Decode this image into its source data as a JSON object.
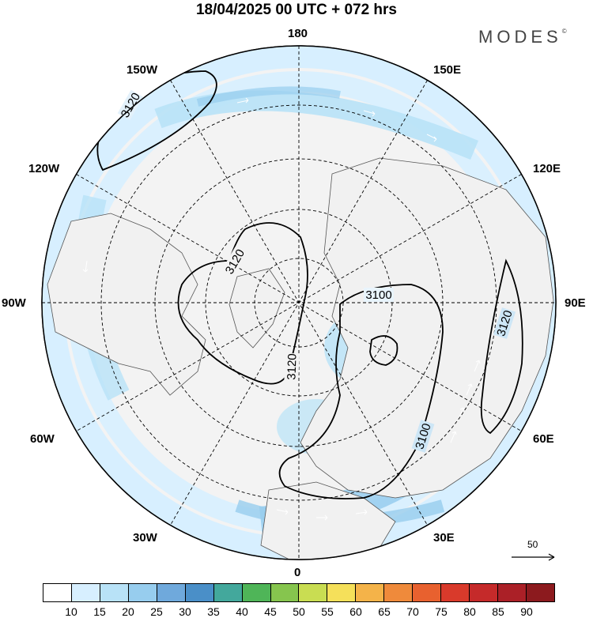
{
  "title": "18/04/2025  00 UTC  + 072 hrs",
  "brand": "MODES",
  "brand_mark": "©",
  "meridian_labels": {
    "top": "180",
    "bottom": "0",
    "left": "90W",
    "right": "90E",
    "upper_left": "150W",
    "upper_left_2": "120W",
    "upper_right": "150E",
    "upper_right_2": "120E",
    "lower_left": "60W",
    "lower_left_2": "30W",
    "lower_right": "60E",
    "lower_right_2": "30E"
  },
  "contour_labels": [
    "3120",
    "3120",
    "3120",
    "3100",
    "3100",
    "3120"
  ],
  "reference_vector": "50",
  "colorbar": {
    "colors": [
      "#ffffff",
      "#d7efff",
      "#b8e2f7",
      "#97cdee",
      "#6fa9dc",
      "#4a8fc8",
      "#43a89c",
      "#4fb558",
      "#86c54e",
      "#c9dd52",
      "#f5e05a",
      "#f4b349",
      "#ef8a3b",
      "#e8612f",
      "#d93a2b",
      "#c52a2a",
      "#ab2027",
      "#8c1a1e"
    ],
    "ticks": [
      "10",
      "15",
      "20",
      "25",
      "30",
      "35",
      "40",
      "45",
      "50",
      "55",
      "60",
      "65",
      "70",
      "75",
      "80",
      "85",
      "90"
    ]
  }
}
